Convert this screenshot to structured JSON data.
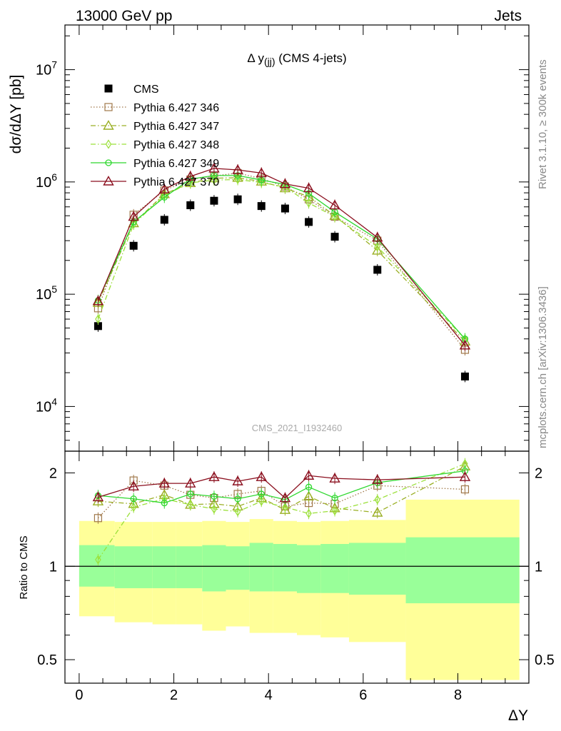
{
  "header": {
    "left": "13000 GeV pp",
    "right": "Jets"
  },
  "side_text": {
    "top": "Rivet 3.1.10, ≥ 300k events",
    "bottom": "mcplots.cern.ch [arXiv:1306.3436]"
  },
  "chart_data": [
    {
      "type": "scatter",
      "title_prefix": "Δ y",
      "title_sub": "(jj)",
      "title_suffix": " (CMS 4-jets)",
      "ylabel": "dσ/dΔY [pb]",
      "y_scale": "log",
      "ylim": [
        4000,
        25000000
      ],
      "xlim": [
        -0.3,
        9.5
      ],
      "watermark": "CMS_2021_I1932460",
      "y_ticks": [
        {
          "value": 10000,
          "base": "10",
          "exp": "4"
        },
        {
          "value": 100000,
          "base": "10",
          "exp": "5"
        },
        {
          "value": 1000000,
          "base": "10",
          "exp": "6"
        },
        {
          "value": 10000000,
          "base": "10",
          "exp": "7"
        }
      ],
      "x": [
        0.4,
        1.15,
        1.8,
        2.35,
        2.85,
        3.35,
        3.85,
        4.35,
        4.85,
        5.4,
        6.3,
        8.15
      ],
      "series": [
        {
          "name": "CMS",
          "color": "#000000",
          "marker": "filled-square",
          "line": "none",
          "values": [
            52000,
            270000,
            460000,
            620000,
            680000,
            700000,
            610000,
            580000,
            440000,
            325000,
            165000,
            18500
          ]
        },
        {
          "name": "Pythia 6.427 346",
          "color": "#a0784a",
          "marker": "open-square",
          "line": "dotted",
          "values": [
            75000,
            510000,
            840000,
            1050000,
            1130000,
            1200000,
            1070000,
            910000,
            700000,
            490000,
            300000,
            32000
          ]
        },
        {
          "name": "Pythia 6.427 347",
          "color": "#9aaf24",
          "marker": "open-triangle",
          "line": "dash-dot",
          "values": [
            84000,
            430000,
            780000,
            980000,
            1080000,
            1090000,
            1010000,
            880000,
            740000,
            500000,
            245000,
            38000
          ]
        },
        {
          "name": "Pythia 6.427 348",
          "color": "#9be03a",
          "marker": "open-diamond",
          "line": "dash-dot",
          "values": [
            60000,
            420000,
            760000,
            980000,
            1040000,
            1050000,
            990000,
            900000,
            650000,
            490000,
            265000,
            40000
          ]
        },
        {
          "name": "Pythia 6.427 349",
          "color": "#2fd82f",
          "marker": "open-circle",
          "line": "solid",
          "values": [
            88000,
            440000,
            730000,
            1060000,
            1140000,
            1140000,
            1040000,
            950000,
            790000,
            540000,
            310000,
            40000
          ]
        },
        {
          "name": "Pythia 6.427 370",
          "color": "#8b0f1e",
          "marker": "open-triangle",
          "line": "solid",
          "values": [
            87000,
            490000,
            860000,
            1120000,
            1320000,
            1280000,
            1200000,
            960000,
            880000,
            620000,
            320000,
            35000
          ]
        }
      ]
    },
    {
      "type": "scatter",
      "ylabel": "Ratio to CMS",
      "xlabel": "ΔY",
      "y_scale": "log",
      "ylim": [
        0.42,
        2.35
      ],
      "xlim": [
        -0.3,
        9.5
      ],
      "y_ticks": [
        0.5,
        1,
        2
      ],
      "x_ticks": [
        0,
        2,
        4,
        6,
        8
      ],
      "reference_line": 1,
      "uncertainty_bins": [
        {
          "x0": 0.0,
          "x1": 0.75,
          "inner": [
            0.86,
            1.17
          ],
          "outer": [
            0.69,
            1.4
          ]
        },
        {
          "x0": 0.75,
          "x1": 1.55,
          "inner": [
            0.85,
            1.16
          ],
          "outer": [
            0.66,
            1.39
          ]
        },
        {
          "x0": 1.55,
          "x1": 2.05,
          "inner": [
            0.85,
            1.16
          ],
          "outer": [
            0.65,
            1.39
          ]
        },
        {
          "x0": 2.05,
          "x1": 2.6,
          "inner": [
            0.85,
            1.16
          ],
          "outer": [
            0.65,
            1.39
          ]
        },
        {
          "x0": 2.6,
          "x1": 3.1,
          "inner": [
            0.83,
            1.17
          ],
          "outer": [
            0.62,
            1.4
          ]
        },
        {
          "x0": 3.1,
          "x1": 3.6,
          "inner": [
            0.84,
            1.16
          ],
          "outer": [
            0.64,
            1.39
          ]
        },
        {
          "x0": 3.6,
          "x1": 4.1,
          "inner": [
            0.83,
            1.19
          ],
          "outer": [
            0.61,
            1.42
          ]
        },
        {
          "x0": 4.1,
          "x1": 4.6,
          "inner": [
            0.83,
            1.18
          ],
          "outer": [
            0.61,
            1.4
          ]
        },
        {
          "x0": 4.6,
          "x1": 5.1,
          "inner": [
            0.82,
            1.17
          ],
          "outer": [
            0.6,
            1.39
          ]
        },
        {
          "x0": 5.1,
          "x1": 5.7,
          "inner": [
            0.82,
            1.18
          ],
          "outer": [
            0.59,
            1.4
          ]
        },
        {
          "x0": 5.7,
          "x1": 6.9,
          "inner": [
            0.81,
            1.19
          ],
          "outer": [
            0.57,
            1.41
          ]
        },
        {
          "x0": 6.9,
          "x1": 9.3,
          "inner": [
            0.76,
            1.24
          ],
          "outer": [
            0.43,
            1.64
          ]
        }
      ],
      "x": [
        0.4,
        1.15,
        1.8,
        2.35,
        2.85,
        3.35,
        3.85,
        4.35,
        4.85,
        5.4,
        6.3,
        8.15
      ],
      "series": [
        {
          "name": "Pythia 6.427 346",
          "color": "#a0784a",
          "marker": "open-square",
          "line": "dotted",
          "values": [
            1.43,
            1.89,
            1.82,
            1.7,
            1.66,
            1.71,
            1.75,
            1.56,
            1.6,
            1.59,
            1.82,
            1.77
          ]
        },
        {
          "name": "Pythia 6.427 347",
          "color": "#9aaf24",
          "marker": "open-triangle",
          "line": "dash-dot",
          "values": [
            1.62,
            1.59,
            1.7,
            1.58,
            1.59,
            1.56,
            1.66,
            1.52,
            1.68,
            1.54,
            1.49,
            2.1
          ]
        },
        {
          "name": "Pythia 6.427 348",
          "color": "#9be03a",
          "marker": "open-diamond",
          "line": "dash-dot",
          "values": [
            1.05,
            1.55,
            1.65,
            1.58,
            1.53,
            1.5,
            1.62,
            1.55,
            1.48,
            1.51,
            1.64,
            2.14
          ]
        },
        {
          "name": "Pythia 6.427 349",
          "color": "#2fd82f",
          "marker": "open-circle",
          "line": "solid",
          "values": [
            1.69,
            1.65,
            1.6,
            1.71,
            1.68,
            1.65,
            1.71,
            1.64,
            1.8,
            1.66,
            1.86,
            2.03
          ]
        },
        {
          "name": "Pythia 6.427 370",
          "color": "#8b0f1e",
          "marker": "open-triangle",
          "line": "solid",
          "values": [
            1.67,
            1.81,
            1.85,
            1.85,
            1.94,
            1.88,
            1.94,
            1.66,
            1.96,
            1.92,
            1.9,
            1.94
          ]
        }
      ]
    }
  ]
}
